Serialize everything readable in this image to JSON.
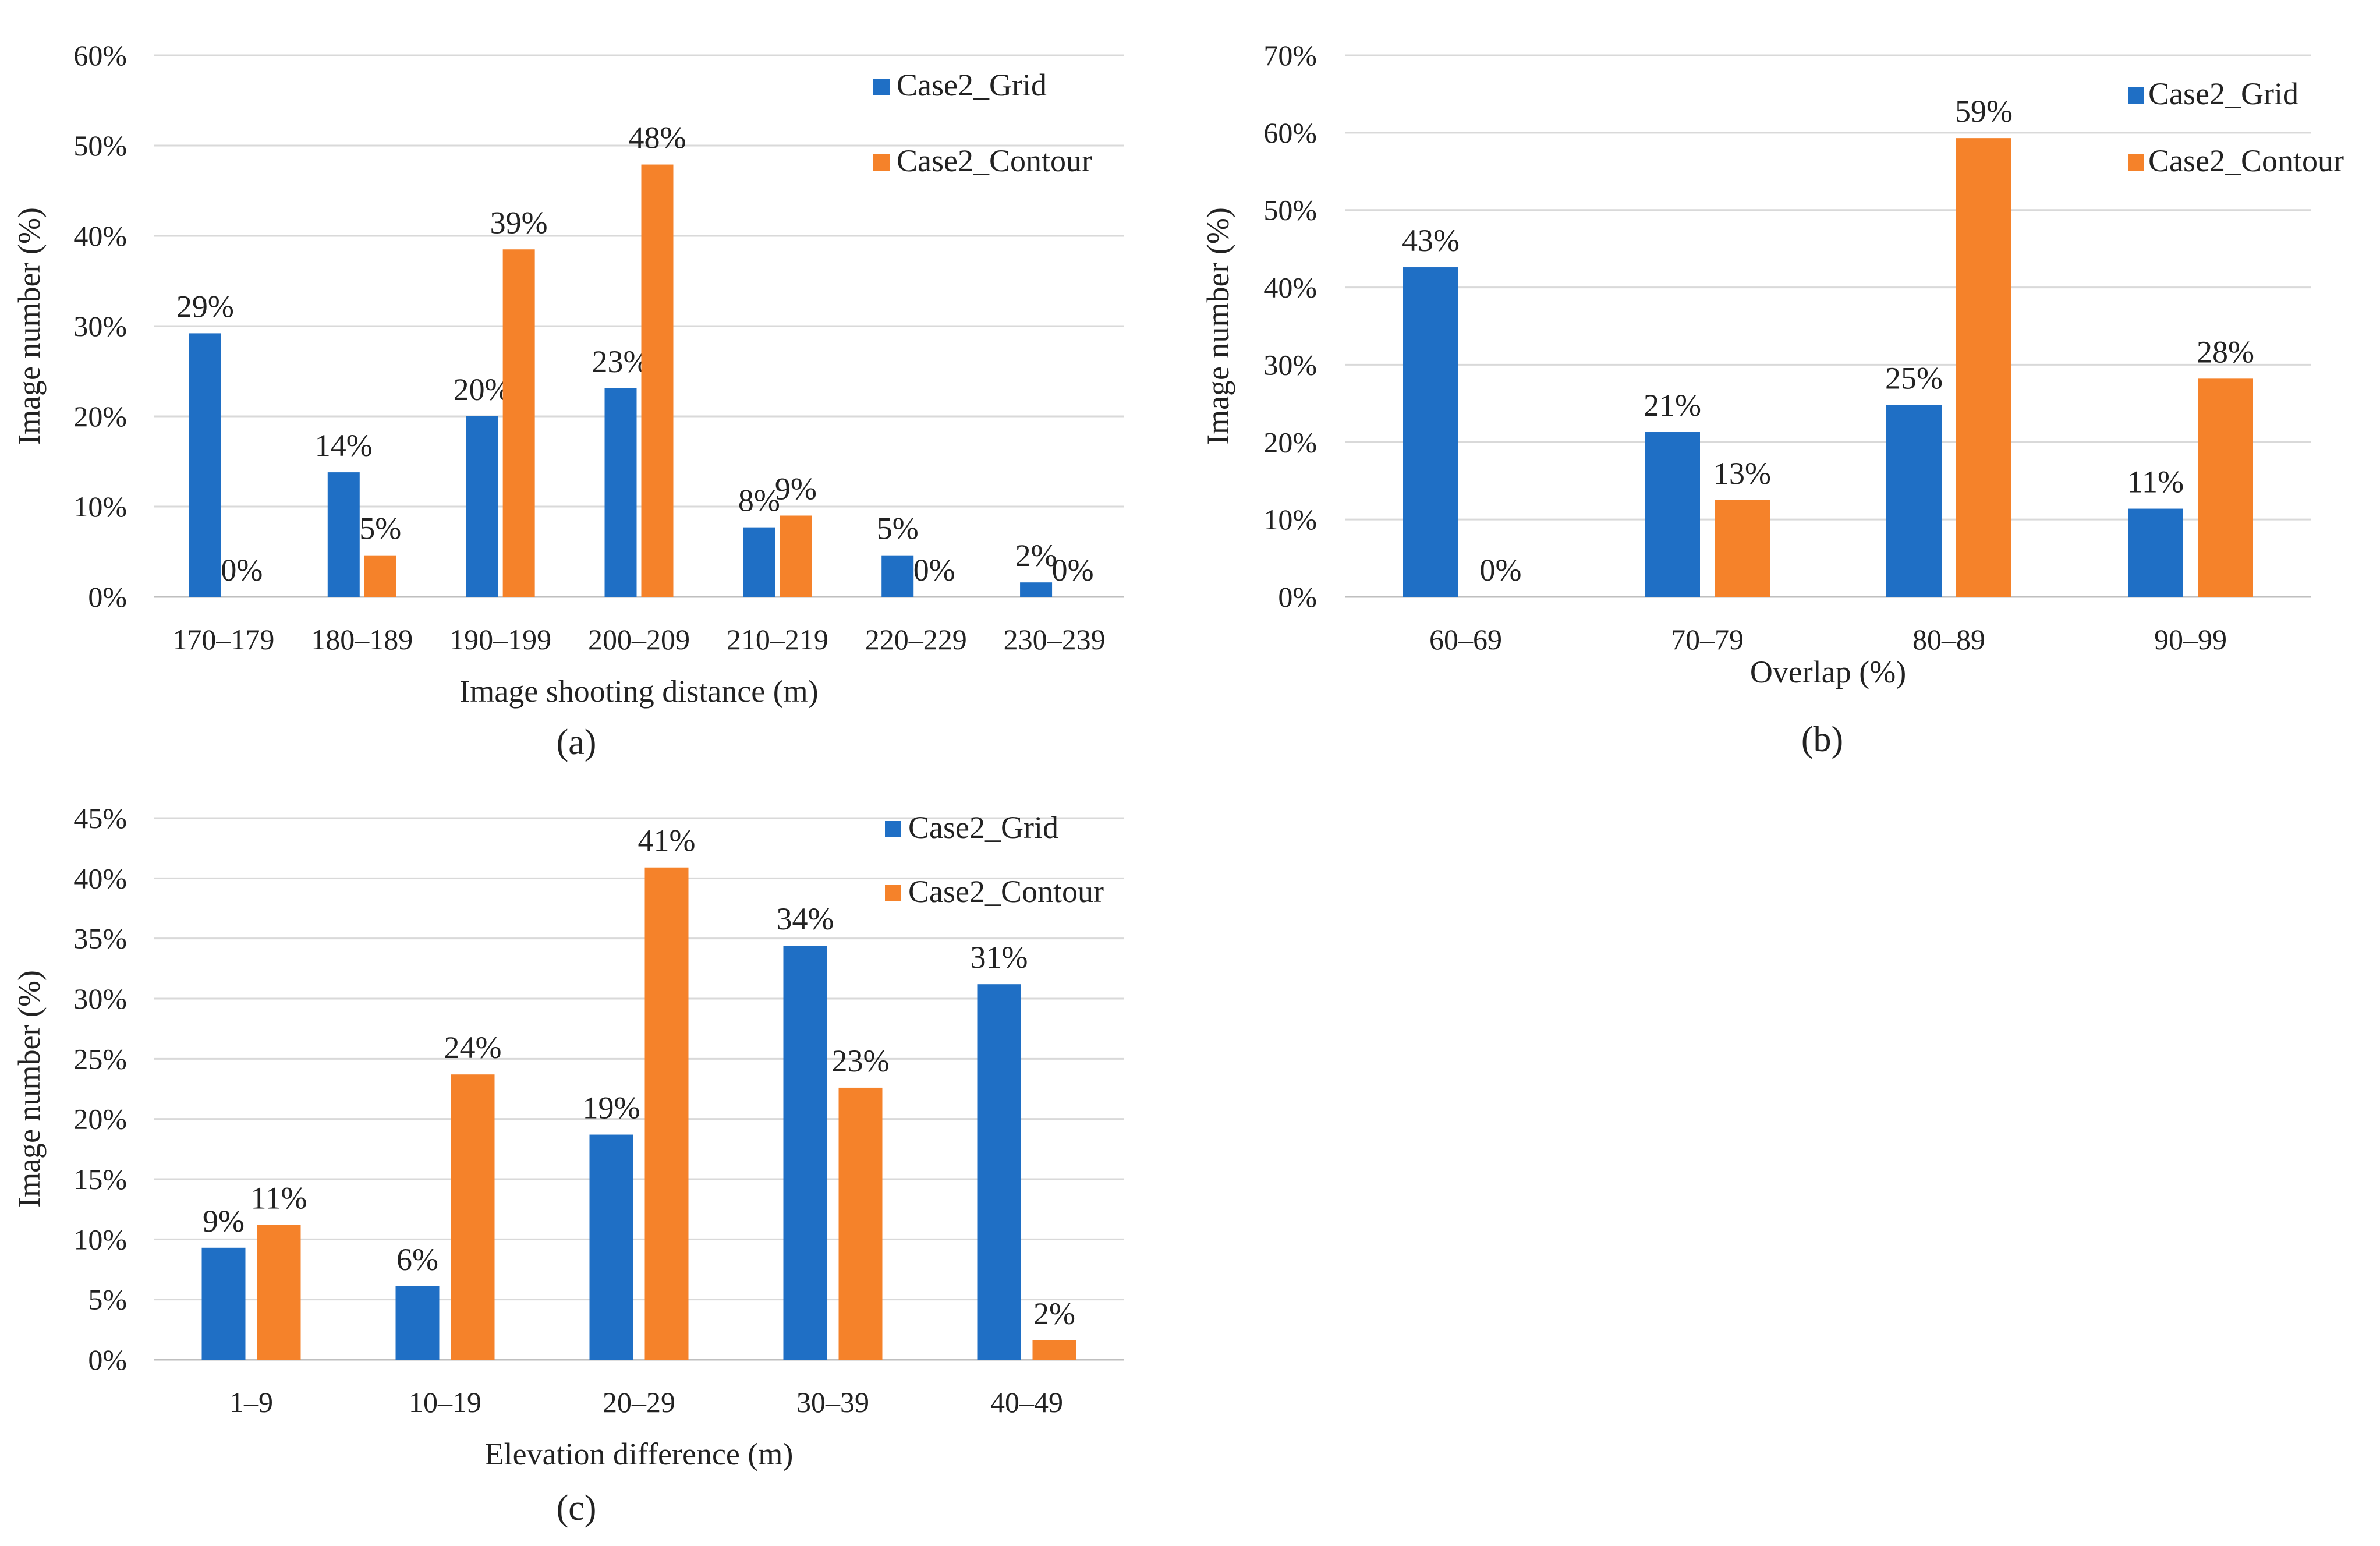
{
  "colors": {
    "grid": "#1f6fc5",
    "contour": "#f5822a"
  },
  "chart_data": [
    {
      "type": "bar",
      "panel": "(a)",
      "caption": "(a)",
      "xlabel": "Image shooting distance (m)",
      "ylabel": "Image number (%)",
      "ylim": [
        0,
        60
      ],
      "yticks": [
        "0%",
        "10%",
        "20%",
        "30%",
        "40%",
        "50%",
        "60%"
      ],
      "categories": [
        "170–179",
        "180–189",
        "190–199",
        "200–209",
        "210–219",
        "220–229",
        "230–239"
      ],
      "series": [
        {
          "name": "Case2_Grid",
          "color": "#1f6fc5",
          "values": [
            29.2,
            13.8,
            20.0,
            23.1,
            7.7,
            4.6,
            1.6
          ],
          "labels": [
            "29%",
            "14%",
            "20%",
            "23%",
            "8%",
            "5%",
            "2%"
          ]
        },
        {
          "name": "Case2_Contour",
          "color": "#f5822a",
          "values": [
            0,
            4.6,
            38.5,
            47.9,
            9.0,
            0,
            0
          ],
          "labels": [
            "0%",
            "5%",
            "39%",
            "48%",
            "9%",
            "0%",
            "0%"
          ]
        }
      ],
      "legend": "top-right"
    },
    {
      "type": "bar",
      "panel": "(b)",
      "caption": "(b)",
      "xlabel": "Overlap (%)",
      "ylabel": "Image number (%)",
      "ylim": [
        0,
        70
      ],
      "yticks": [
        "0%",
        "10%",
        "20%",
        "30%",
        "40%",
        "50%",
        "60%",
        "70%"
      ],
      "categories": [
        "60–69",
        "70–79",
        "80–89",
        "90–99"
      ],
      "series": [
        {
          "name": "Case2_Grid",
          "color": "#1f6fc5",
          "values": [
            42.6,
            21.3,
            24.8,
            11.4
          ],
          "labels": [
            "43%",
            "21%",
            "25%",
            "11%"
          ]
        },
        {
          "name": "Case2_Contour",
          "color": "#f5822a",
          "values": [
            0,
            12.5,
            59.3,
            28.2
          ],
          "labels": [
            "0%",
            "13%",
            "59%",
            "28%"
          ]
        }
      ],
      "legend": "top-right"
    },
    {
      "type": "bar",
      "panel": "(c)",
      "caption": "(c)",
      "xlabel": "Elevation difference (m)",
      "ylabel": "Image number (%)",
      "ylim": [
        0,
        45
      ],
      "yticks": [
        "0%",
        "5%",
        "10%",
        "15%",
        "20%",
        "25%",
        "30%",
        "35%",
        "40%",
        "45%"
      ],
      "categories": [
        "1–9",
        "10–19",
        "20–29",
        "30–39",
        "40–49"
      ],
      "series": [
        {
          "name": "Case2_Grid",
          "color": "#1f6fc5",
          "values": [
            9.3,
            6.1,
            18.7,
            34.4,
            31.2
          ],
          "labels": [
            "9%",
            "6%",
            "19%",
            "34%",
            "31%"
          ]
        },
        {
          "name": "Case2_Contour",
          "color": "#f5822a",
          "values": [
            11.2,
            23.7,
            40.9,
            22.6,
            1.6
          ],
          "labels": [
            "11%",
            "24%",
            "41%",
            "23%",
            "2%"
          ]
        }
      ],
      "legend": "top-right"
    }
  ]
}
